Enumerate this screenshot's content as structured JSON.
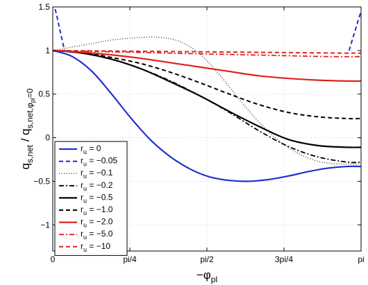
{
  "chart_data": {
    "type": "line",
    "title": "",
    "xlabel": {
      "main": "−φ",
      "sub": "pl"
    },
    "ylabel": {
      "q1": "q",
      "q1sub": "s,net",
      "slash": " / ",
      "q2": "q",
      "q2sub": "s,net,φ",
      "q2subsub": "pl",
      "q2tail": "=0"
    },
    "xlim": [
      0,
      3.14159
    ],
    "ylim": [
      -1.3,
      1.5
    ],
    "xticks": [
      {
        "value": 0,
        "label": "0"
      },
      {
        "value": 0.7854,
        "label": "pi/4"
      },
      {
        "value": 1.5708,
        "label": "pi/2"
      },
      {
        "value": 2.3562,
        "label": "3pi/4"
      },
      {
        "value": 3.14159,
        "label": "pi"
      }
    ],
    "yticks": [
      {
        "value": -1,
        "label": "−1"
      },
      {
        "value": -0.5,
        "label": "−0.5"
      },
      {
        "value": 0,
        "label": "0"
      },
      {
        "value": 0.5,
        "label": "0.5"
      },
      {
        "value": 1,
        "label": "1"
      },
      {
        "value": 1.5,
        "label": "1.5"
      }
    ],
    "grid": true,
    "legend_position": "bottom-left",
    "series": [
      {
        "name_main": "r",
        "name_sub": "u",
        "name_tail": " = 0",
        "color": "#1f2fcf",
        "dash": "",
        "width": 2.2,
        "x": [
          0,
          0.2,
          0.4,
          0.6,
          0.8,
          1.0,
          1.2,
          1.4,
          1.6,
          1.8,
          2.0,
          2.2,
          2.4,
          2.6,
          2.8,
          3.0,
          3.14159
        ],
        "y": [
          1.0,
          0.93,
          0.76,
          0.5,
          0.22,
          -0.03,
          -0.22,
          -0.36,
          -0.45,
          -0.49,
          -0.5,
          -0.48,
          -0.44,
          -0.39,
          -0.35,
          -0.33,
          -0.33
        ]
      },
      {
        "name_main": "r",
        "name_sub": "u",
        "name_tail": " = −0.05",
        "color": "#1f2fcf",
        "dash": "6,4",
        "width": 2.0,
        "x": [
          0,
          0.03,
          0.06,
          0.09,
          0.12
        ],
        "y": [
          1.55,
          1.45,
          1.3,
          1.15,
          1.0
        ],
        "x2": [
          3.02,
          3.06,
          3.1,
          3.14159
        ],
        "y2": [
          1.0,
          1.15,
          1.3,
          1.45
        ]
      },
      {
        "name_main": "r",
        "name_sub": "u",
        "name_tail": " = −0.1",
        "color": "#333333",
        "dash": "1,2.5",
        "width": 1.4,
        "x": [
          0,
          0.3,
          0.6,
          0.9,
          1.1,
          1.3,
          1.5,
          1.7,
          1.9,
          2.1,
          2.3,
          2.5,
          2.7,
          2.9,
          3.14159
        ],
        "y": [
          1.0,
          1.06,
          1.12,
          1.15,
          1.15,
          1.1,
          0.96,
          0.72,
          0.44,
          0.18,
          -0.03,
          -0.18,
          -0.27,
          -0.3,
          -0.3
        ]
      },
      {
        "name_main": "r",
        "name_sub": "u",
        "name_tail": " = −0.2",
        "color": "#000000",
        "dash": "7,3,2,3",
        "width": 1.8,
        "x": [
          0,
          0.3,
          0.6,
          0.9,
          1.2,
          1.5,
          1.8,
          2.1,
          2.4,
          2.7,
          3.0,
          3.14159
        ],
        "y": [
          1.0,
          0.98,
          0.9,
          0.79,
          0.65,
          0.48,
          0.29,
          0.08,
          -0.1,
          -0.22,
          -0.28,
          -0.28
        ]
      },
      {
        "name_main": "r",
        "name_sub": "u",
        "name_tail": " = −0.5",
        "color": "#000000",
        "dash": "",
        "width": 2.2,
        "x": [
          0,
          0.3,
          0.6,
          0.9,
          1.2,
          1.5,
          1.8,
          2.1,
          2.4,
          2.7,
          3.0,
          3.14159
        ],
        "y": [
          1.0,
          0.97,
          0.9,
          0.79,
          0.64,
          0.48,
          0.3,
          0.13,
          -0.02,
          -0.09,
          -0.11,
          -0.11
        ]
      },
      {
        "name_main": "r",
        "name_sub": "u",
        "name_tail": " = −1.0",
        "color": "#000000",
        "dash": "6,4",
        "width": 2.0,
        "x": [
          0,
          0.3,
          0.6,
          0.9,
          1.2,
          1.5,
          1.8,
          2.1,
          2.4,
          2.7,
          3.0,
          3.14159
        ],
        "y": [
          1.0,
          0.98,
          0.92,
          0.85,
          0.75,
          0.63,
          0.5,
          0.38,
          0.29,
          0.24,
          0.22,
          0.22
        ]
      },
      {
        "name_main": "r",
        "name_sub": "u",
        "name_tail": " = −2.0",
        "color": "#e0201d",
        "dash": "",
        "width": 2.2,
        "x": [
          0,
          0.3,
          0.6,
          0.9,
          1.2,
          1.5,
          1.8,
          2.1,
          2.4,
          2.7,
          3.0,
          3.14159
        ],
        "y": [
          1.0,
          0.98,
          0.95,
          0.91,
          0.86,
          0.81,
          0.76,
          0.71,
          0.68,
          0.66,
          0.65,
          0.65
        ]
      },
      {
        "name_main": "r",
        "name_sub": "u",
        "name_tail": " = −5.0",
        "color": "#e0201d",
        "dash": "7,3,2,3",
        "width": 1.8,
        "x": [
          0,
          0.4,
          0.8,
          1.2,
          1.6,
          2.0,
          2.4,
          2.8,
          3.14159
        ],
        "y": [
          1.0,
          0.99,
          0.98,
          0.97,
          0.96,
          0.95,
          0.94,
          0.93,
          0.93
        ]
      },
      {
        "name_main": "r",
        "name_sub": "u",
        "name_tail": " = −10",
        "color": "#e0201d",
        "dash": "6,4",
        "width": 2.0,
        "x": [
          0,
          0.5,
          1.0,
          1.5,
          2.0,
          2.5,
          3.0,
          3.14159
        ],
        "y": [
          1.0,
          0.995,
          0.99,
          0.985,
          0.98,
          0.975,
          0.97,
          0.97
        ]
      }
    ]
  }
}
